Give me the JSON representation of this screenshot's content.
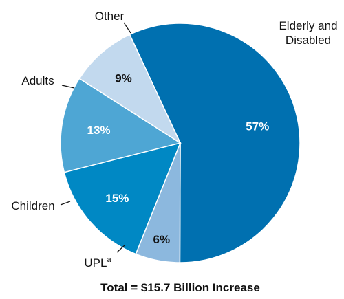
{
  "chart_data": {
    "type": "pie",
    "slices": [
      {
        "label": "Elderly and Disabled",
        "label_lines": [
          "Elderly and",
          "Disabled"
        ],
        "value": 57,
        "value_label": "57%",
        "color": "#0070b0",
        "value_text_color": "#ffffff"
      },
      {
        "label": "UPL",
        "label_lines": [
          "UPL"
        ],
        "label_sup": "a",
        "value": 6,
        "value_label": "6%",
        "color": "#8cb8de",
        "value_text_color": "#111111"
      },
      {
        "label": "Children",
        "label_lines": [
          "Children"
        ],
        "value": 15,
        "value_label": "15%",
        "color": "#0088c4",
        "value_text_color": "#ffffff"
      },
      {
        "label": "Adults",
        "label_lines": [
          "Adults"
        ],
        "value": 13,
        "value_label": "13%",
        "color": "#4ea6d4",
        "value_text_color": "#ffffff"
      },
      {
        "label": "Other",
        "label_lines": [
          "Other"
        ],
        "value": 9,
        "value_label": "9%",
        "color": "#c2d9ee",
        "value_text_color": "#111111"
      }
    ],
    "footer": "Total = $15.7 Billion Increase"
  }
}
